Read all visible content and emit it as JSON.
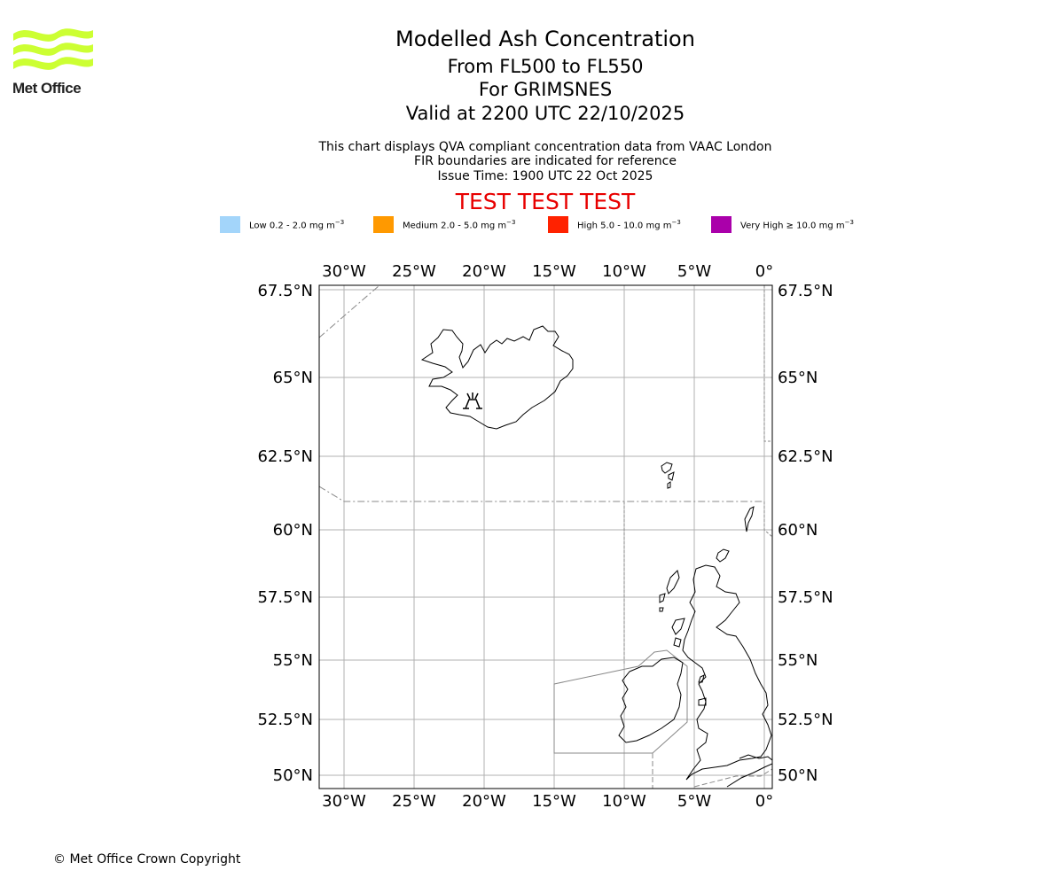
{
  "logo": {
    "text": "Met Office",
    "color": "#ccff33"
  },
  "header": {
    "title": "Modelled Ash Concentration",
    "level_range": "From FL500 to FL550",
    "volcano_line": "For GRIMSNES",
    "valid_line": "Valid at 2200 UTC 22/10/2025"
  },
  "info": {
    "line1": "This chart displays QVA compliant concentration data from VAAC London",
    "line2": "FIR boundaries are indicated for reference",
    "line3": "Issue Time: 1900 UTC 22 Oct 2025"
  },
  "test_banner": "TEST TEST TEST",
  "legend": [
    {
      "label": "Low 0.2 - 2.0 mg m",
      "unit_sup": "−3",
      "color": "#a3d5fa"
    },
    {
      "label": "Medium 2.0 - 5.0 mg m",
      "unit_sup": "−3",
      "color": "#ff9900"
    },
    {
      "label": "High 5.0 - 10.0 mg m",
      "unit_sup": "−3",
      "color": "#ff2200"
    },
    {
      "label": "Very High  ≥  10.0 mg m",
      "unit_sup": "−3",
      "color": "#aa00aa"
    }
  ],
  "map": {
    "lon_ticks": [
      "30°W",
      "25°W",
      "20°W",
      "15°W",
      "10°W",
      "5°W",
      "0°"
    ],
    "lat_ticks": [
      "67.5°N",
      "65°N",
      "62.5°N",
      "60°N",
      "57.5°N",
      "55°N",
      "52.5°N",
      "50°N"
    ],
    "volcano_symbol": "volcano"
  },
  "copyright": "© Met Office Crown Copyright"
}
